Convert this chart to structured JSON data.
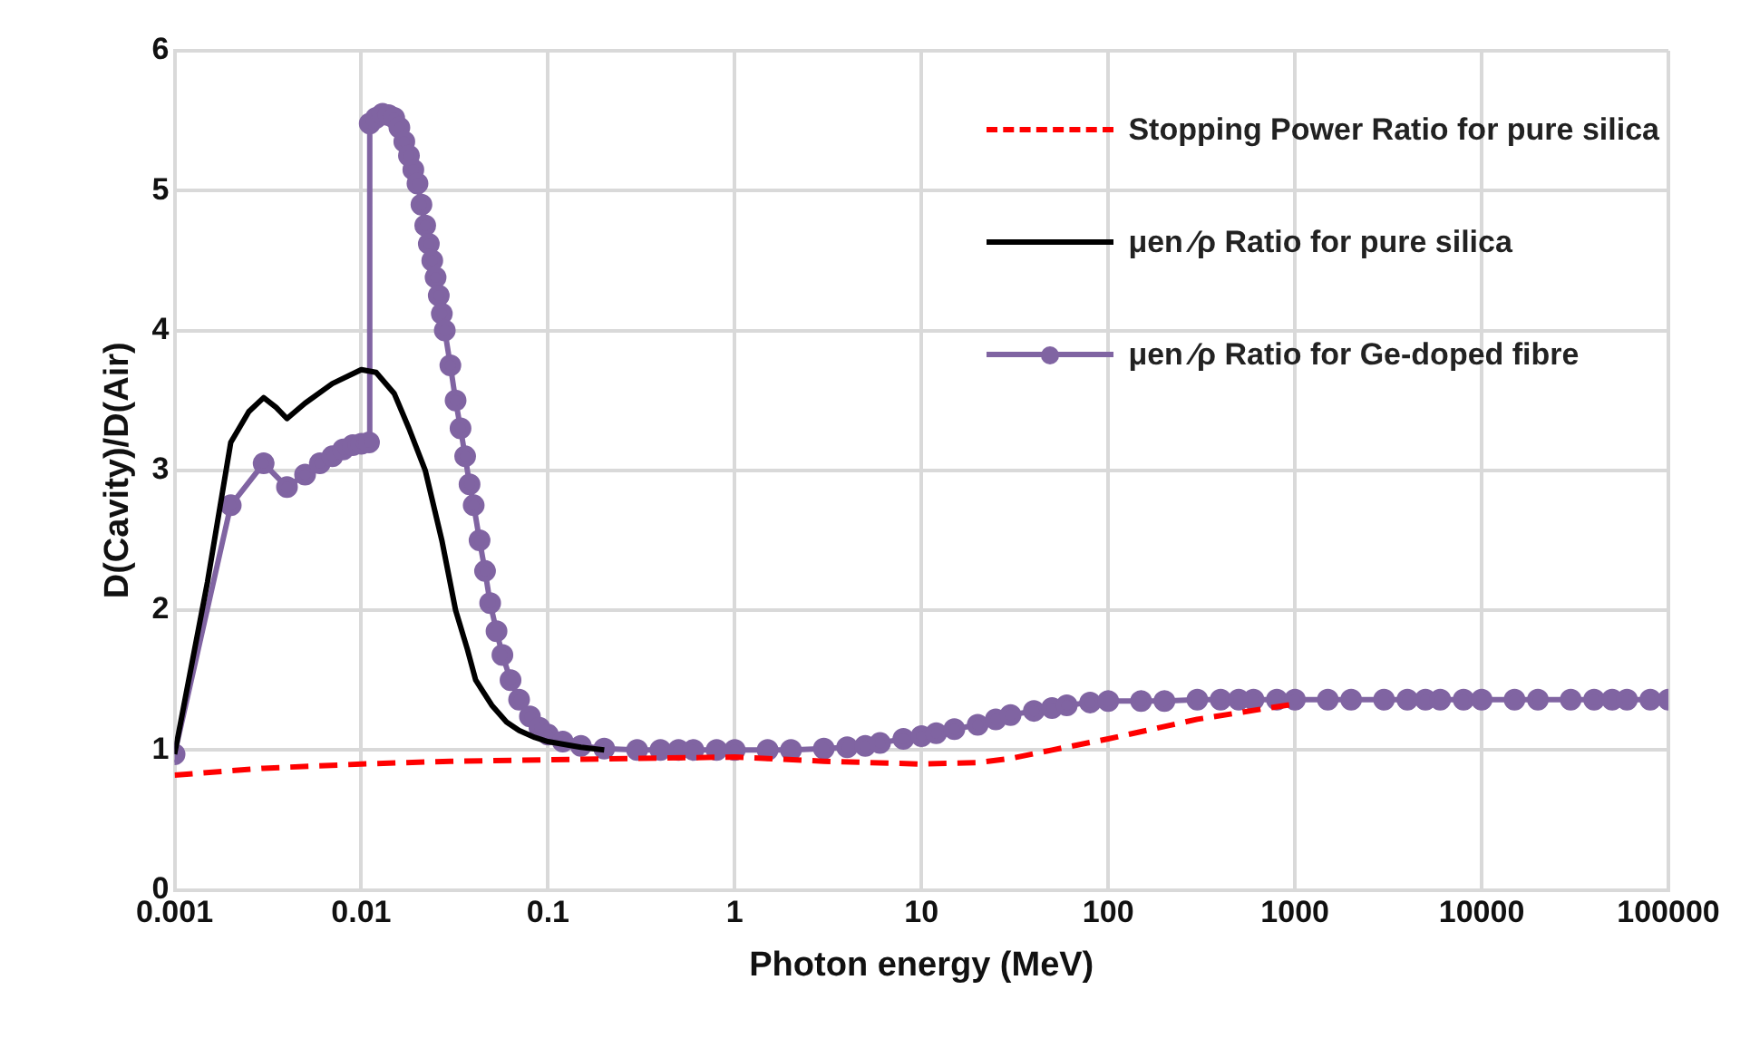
{
  "chart_data": {
    "type": "line",
    "xlabel": "Photon energy (MeV)",
    "ylabel": "D(Cavity)/D(Air)",
    "log": "x",
    "xlim": [
      0.001,
      100000
    ],
    "xticks": [
      {
        "value": 0.001,
        "label": "0.001"
      },
      {
        "value": 0.01,
        "label": "0.01"
      },
      {
        "value": 0.1,
        "label": "0.1"
      },
      {
        "value": 1,
        "label": "1"
      },
      {
        "value": 10,
        "label": "10"
      },
      {
        "value": 100,
        "label": "100"
      },
      {
        "value": 1000,
        "label": "1000"
      },
      {
        "value": 10000,
        "label": "10000"
      },
      {
        "value": 100000,
        "label": "100000"
      }
    ],
    "ylim": [
      0,
      6
    ],
    "yticks": [
      0,
      1,
      2,
      3,
      4,
      5,
      6
    ],
    "grid": true,
    "legend": "top right",
    "series": [
      {
        "name": "Stopping Power Ratio for pure silica",
        "color": "#ff0000",
        "line_style": "dashed",
        "marker": "none",
        "x": [
          0.001,
          0.003,
          0.01,
          0.03,
          0.1,
          0.3,
          1,
          3,
          10,
          20,
          30,
          50,
          100,
          300,
          1000
        ],
        "values": [
          0.82,
          0.87,
          0.9,
          0.92,
          0.93,
          0.94,
          0.95,
          0.92,
          0.9,
          0.91,
          0.94,
          1.0,
          1.08,
          1.22,
          1.33
        ]
      },
      {
        "name": "μen ∕ρ Ratio for pure silica",
        "color": "#000000",
        "line_style": "solid",
        "marker": "none",
        "x": [
          0.001,
          0.0015,
          0.002,
          0.0025,
          0.003,
          0.0035,
          0.004,
          0.005,
          0.007,
          0.01,
          0.012,
          0.015,
          0.018,
          0.022,
          0.027,
          0.032,
          0.037,
          0.041,
          0.05,
          0.06,
          0.07,
          0.085,
          0.1,
          0.15,
          0.2
        ],
        "values": [
          0.97,
          2.2,
          3.2,
          3.42,
          3.52,
          3.45,
          3.37,
          3.48,
          3.62,
          3.72,
          3.7,
          3.55,
          3.3,
          3.0,
          2.5,
          2.0,
          1.72,
          1.5,
          1.32,
          1.2,
          1.14,
          1.09,
          1.06,
          1.02,
          1.0
        ]
      },
      {
        "name": "μen ∕ρ Ratio for Ge-doped fibre",
        "color": "#8064a2",
        "line_style": "solid",
        "marker": "circle",
        "x": [
          0.001,
          0.002,
          0.003,
          0.004,
          0.005,
          0.006,
          0.007,
          0.008,
          0.009,
          0.01,
          0.011,
          0.0111,
          0.012,
          0.013,
          0.014,
          0.015,
          0.016,
          0.017,
          0.018,
          0.019,
          0.02,
          0.021,
          0.022,
          0.023,
          0.024,
          0.025,
          0.026,
          0.027,
          0.028,
          0.03,
          0.032,
          0.034,
          0.036,
          0.038,
          0.04,
          0.043,
          0.046,
          0.049,
          0.053,
          0.057,
          0.063,
          0.07,
          0.08,
          0.09,
          0.1,
          0.12,
          0.15,
          0.2,
          0.3,
          0.4,
          0.5,
          0.6,
          0.8,
          1,
          1.5,
          2,
          3,
          4,
          5,
          6,
          8,
          10,
          12,
          15,
          20,
          25,
          30,
          40,
          50,
          60,
          80,
          100,
          150,
          200,
          300,
          400,
          500,
          600,
          800,
          1000,
          1500,
          2000,
          3000,
          4000,
          5000,
          6000,
          8000,
          10000,
          15000,
          20000,
          30000,
          40000,
          50000,
          60000,
          80000,
          100000
        ],
        "values": [
          0.97,
          2.75,
          3.05,
          2.88,
          2.97,
          3.05,
          3.1,
          3.15,
          3.18,
          3.19,
          3.2,
          5.48,
          5.52,
          5.55,
          5.54,
          5.52,
          5.45,
          5.35,
          5.25,
          5.15,
          5.05,
          4.9,
          4.75,
          4.62,
          4.5,
          4.38,
          4.25,
          4.12,
          4.0,
          3.75,
          3.5,
          3.3,
          3.1,
          2.9,
          2.75,
          2.5,
          2.28,
          2.05,
          1.85,
          1.68,
          1.5,
          1.36,
          1.24,
          1.16,
          1.11,
          1.06,
          1.03,
          1.01,
          1.0,
          1.0,
          1.0,
          1.0,
          1.0,
          1.0,
          1.0,
          1.0,
          1.01,
          1.02,
          1.03,
          1.05,
          1.08,
          1.1,
          1.12,
          1.15,
          1.18,
          1.22,
          1.25,
          1.28,
          1.3,
          1.32,
          1.34,
          1.35,
          1.35,
          1.35,
          1.36,
          1.36,
          1.36,
          1.36,
          1.36,
          1.36,
          1.36,
          1.36,
          1.36,
          1.36,
          1.36,
          1.36,
          1.36,
          1.36,
          1.36,
          1.36,
          1.36,
          1.36,
          1.36,
          1.36,
          1.36,
          1.36
        ]
      }
    ]
  }
}
